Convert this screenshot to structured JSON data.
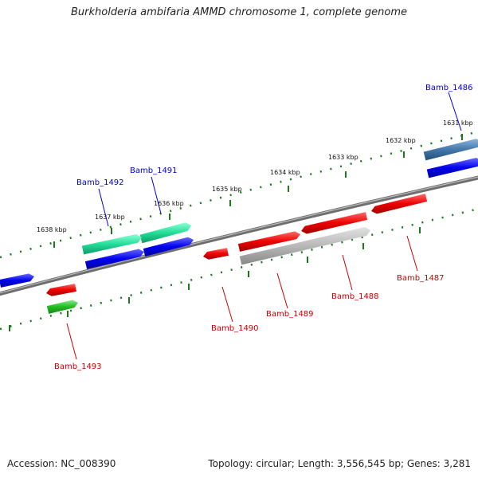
{
  "title": "Burkholderia ambifaria AMMD chromosome 1, complete genome",
  "accession": "Accession: NC_008390",
  "summary": "Topology: circular; Length: 3,556,545 bp; Genes: 3,281",
  "colors": {
    "backbone": "#888888",
    "tick": "#1a7a1a",
    "label_blue": "#0000cc",
    "label_red": "#cc0000"
  },
  "ticks": [
    {
      "label": "1638 kbp"
    },
    {
      "label": "1637 kbp"
    },
    {
      "label": "1636 kbp"
    },
    {
      "label": "1635 kbp"
    },
    {
      "label": "1634 kbp"
    },
    {
      "label": "1633 kbp"
    },
    {
      "label": "1632 kbp"
    },
    {
      "label": "1631 kbp"
    }
  ],
  "genes": [
    {
      "name": "Bamb_1486",
      "color": "blue"
    },
    {
      "name": "Bamb_1487",
      "color": "red"
    },
    {
      "name": "Bamb_1488",
      "color": "red"
    },
    {
      "name": "Bamb_1489",
      "color": "red"
    },
    {
      "name": "Bamb_1490",
      "color": "red"
    },
    {
      "name": "Bamb_1491",
      "color": "blue"
    },
    {
      "name": "Bamb_1492",
      "color": "blue"
    },
    {
      "name": "Bamb_1493",
      "color": "red"
    }
  ]
}
